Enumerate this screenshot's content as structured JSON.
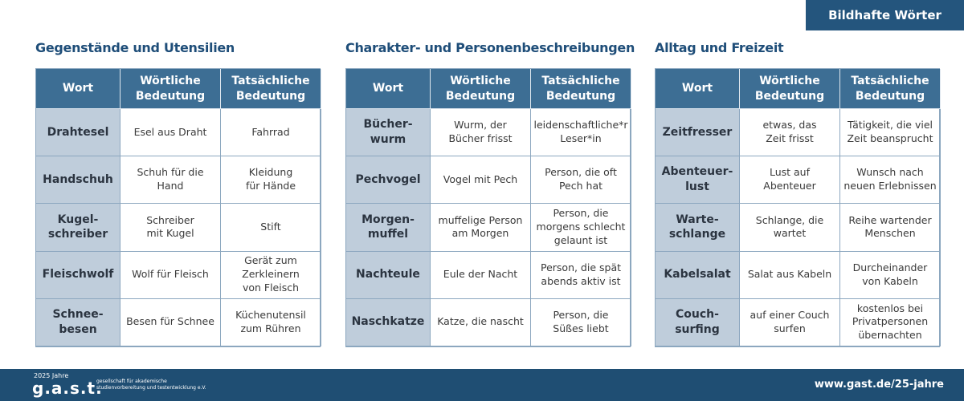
{
  "header": {
    "tab": "Bildhafte Wörter"
  },
  "sections": [
    {
      "title": "Gegenstände und Utensilien",
      "table": {
        "columns": [
          "Wort",
          "Wörtliche\nBedeutung",
          "Tatsächliche\nBedeutung"
        ],
        "rows": [
          [
            "Drahtesel",
            "Esel aus Draht",
            "Fahrrad"
          ],
          [
            "Handschuh",
            "Schuh für die\nHand",
            "Kleidung\nfür Hände"
          ],
          [
            "Kugel-\nschreiber",
            "Schreiber\nmit Kugel",
            "Stift"
          ],
          [
            "Fleischwolf",
            "Wolf für Fleisch",
            "Gerät zum\nZerkleinern\nvon Fleisch"
          ],
          [
            "Schnee-\nbesen",
            "Besen für Schnee",
            "Küchenutensil\nzum Rühren"
          ]
        ]
      }
    },
    {
      "title": "Charakter- und Personenbeschreibungen",
      "table": {
        "columns": [
          "Wort",
          "Wörtliche\nBedeutung",
          "Tatsächliche\nBedeutung"
        ],
        "rows": [
          [
            "Bücher-\nwurm",
            "Wurm, der\nBücher frisst",
            "leidenschaftliche*r\nLeser*in"
          ],
          [
            "Pechvogel",
            "Vogel mit Pech",
            "Person, die oft\nPech hat"
          ],
          [
            "Morgen-\nmuffel",
            "muffelige Person\nam Morgen",
            "Person, die\nmorgens schlecht\ngelaunt ist"
          ],
          [
            "Nachteule",
            "Eule der Nacht",
            "Person, die spät\nabends aktiv ist"
          ],
          [
            "Naschkatze",
            "Katze, die nascht",
            "Person, die\nSüßes liebt"
          ]
        ]
      }
    },
    {
      "title": "Alltag und Freizeit",
      "table": {
        "columns": [
          "Wort",
          "Wörtliche\nBedeutung",
          "Tatsächliche\nBedeutung"
        ],
        "rows": [
          [
            "Zeitfresser",
            "etwas, das\nZeit frisst",
            "Tätigkeit, die viel\nZeit beansprucht"
          ],
          [
            "Abenteuer-\nlust",
            "Lust auf\nAbenteuer",
            "Wunsch nach\nneuen Erlebnissen"
          ],
          [
            "Warte-\nschlange",
            "Schlange, die\nwartet",
            "Reihe wartender\nMenschen"
          ],
          [
            "Kabelsalat",
            "Salat aus Kabeln",
            "Durcheinander\nvon Kabeln"
          ],
          [
            "Couch-\nsurfing",
            "auf einer Couch\nsurfen",
            "kostenlos bei\nPrivatpersonen\nübernachten"
          ]
        ]
      }
    }
  ],
  "footer": {
    "logo_years": "2025 Jahre",
    "logo": "g.a.s.t.",
    "logo_text": "gesellschaft für akademische\nstudienvorbereitung und testentwicklung e.V.",
    "url": "www.gast.de/25-jahre"
  }
}
